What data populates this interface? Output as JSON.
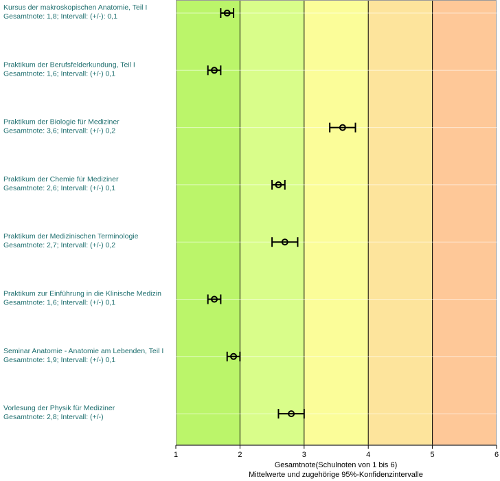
{
  "chart_data": {
    "type": "scatter",
    "xlim": [
      1,
      6
    ],
    "x_ticks": [
      "1",
      "2",
      "3",
      "4",
      "5",
      "6"
    ],
    "xlabel": "Gesamtnote(Schulnoten von 1 bis 6)",
    "xlabel2": "Mittelwerte und zugehörige 95%-Konfidenzintervalle",
    "grid": true,
    "bands": [
      {
        "from": 1,
        "to": 2,
        "color": "#bbf56a"
      },
      {
        "from": 2,
        "to": 3,
        "color": "#d9fd8a"
      },
      {
        "from": 3,
        "to": 4,
        "color": "#fbfd99"
      },
      {
        "from": 4,
        "to": 5,
        "color": "#fde49c"
      },
      {
        "from": 5,
        "to": 6,
        "color": "#fec898"
      }
    ],
    "colors": {
      "marker": "#000000",
      "label": "#1f6f6f",
      "grid": "#000000"
    },
    "items": [
      {
        "title": "Kursus der makroskopischen Anatomie, Teil I",
        "subtitle": "Gesamtnote: 1,8;  Intervall: (+/-): 0,1",
        "mean": 1.8,
        "low": 1.7,
        "high": 1.9
      },
      {
        "title": "Praktikum der Berufsfelderkundung, Teil I",
        "subtitle": "Gesamtnote: 1,6; Intervall: (+/-) 0,1",
        "mean": 1.6,
        "low": 1.5,
        "high": 1.7
      },
      {
        "title": "Praktikum der Biologie für Mediziner",
        "subtitle": "Gesamtnote: 3,6;  Intervall: (+/-) 0,2",
        "mean": 3.6,
        "low": 3.4,
        "high": 3.8
      },
      {
        "title": "Praktikum der Chemie für Mediziner",
        "subtitle": "Gesamtnote: 2,6; Intervall: (+/-) 0,1",
        "mean": 2.6,
        "low": 2.5,
        "high": 2.7
      },
      {
        "title": "Praktikum der Medizinischen Terminologie",
        "subtitle": "Gesamtnote: 2,7;  Intervall: (+/-) 0,2",
        "mean": 2.7,
        "low": 2.5,
        "high": 2.9
      },
      {
        "title": "Praktikum zur Einführung in die Klinische Medizin",
        "subtitle": "Gesamtnote: 1,6;  Intervall: (+/-) 0,1",
        "mean": 1.6,
        "low": 1.5,
        "high": 1.7
      },
      {
        "title": "Seminar Anatomie - Anatomie am Lebenden, Teil I",
        "subtitle": "Gesamtnote: 1,9;  Intervall: (+/-) 0,1",
        "mean": 1.9,
        "low": 1.8,
        "high": 2.0
      },
      {
        "title": "Vorlesung der Physik für Mediziner",
        "subtitle": "Gesamtnote: 2,8;  Intervall: (+/-)",
        "mean": 2.8,
        "low": 2.6,
        "high": 3.0
      }
    ]
  }
}
